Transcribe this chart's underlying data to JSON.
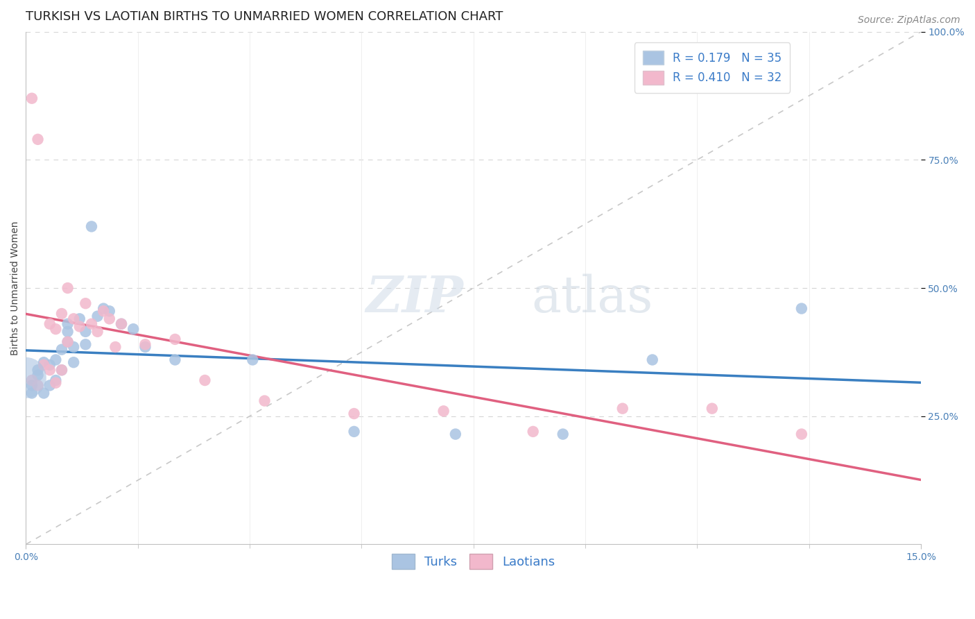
{
  "title": "TURKISH VS LAOTIAN BIRTHS TO UNMARRIED WOMEN CORRELATION CHART",
  "source_text": "Source: ZipAtlas.com",
  "ylabel": "Births to Unmarried Women",
  "xlim": [
    0.0,
    0.15
  ],
  "ylim": [
    0.0,
    1.0
  ],
  "legend_r1": "R = 0.179",
  "legend_n1": "N = 35",
  "legend_r2": "R = 0.410",
  "legend_n2": "N = 32",
  "turks_color": "#aac4e2",
  "laotians_color": "#f2b8cc",
  "turks_line_color": "#3a7fc1",
  "laotians_line_color": "#e06080",
  "ref_line_color": "#c8c8c8",
  "background_color": "#ffffff",
  "turks_x": [
    0.0,
    0.001,
    0.001,
    0.002,
    0.002,
    0.003,
    0.003,
    0.004,
    0.004,
    0.005,
    0.005,
    0.006,
    0.006,
    0.007,
    0.007,
    0.007,
    0.008,
    0.008,
    0.009,
    0.01,
    0.01,
    0.011,
    0.012,
    0.013,
    0.014,
    0.016,
    0.018,
    0.02,
    0.025,
    0.038,
    0.055,
    0.072,
    0.09,
    0.105,
    0.13
  ],
  "turks_y": [
    0.325,
    0.31,
    0.295,
    0.33,
    0.34,
    0.295,
    0.355,
    0.31,
    0.35,
    0.32,
    0.36,
    0.34,
    0.38,
    0.395,
    0.415,
    0.43,
    0.355,
    0.385,
    0.44,
    0.39,
    0.415,
    0.62,
    0.445,
    0.46,
    0.455,
    0.43,
    0.42,
    0.385,
    0.36,
    0.36,
    0.22,
    0.215,
    0.215,
    0.36,
    0.46
  ],
  "laotians_x": [
    0.001,
    0.001,
    0.002,
    0.002,
    0.003,
    0.004,
    0.004,
    0.005,
    0.005,
    0.006,
    0.006,
    0.007,
    0.007,
    0.008,
    0.009,
    0.01,
    0.011,
    0.012,
    0.013,
    0.014,
    0.015,
    0.016,
    0.02,
    0.025,
    0.03,
    0.04,
    0.055,
    0.07,
    0.085,
    0.1,
    0.115,
    0.13
  ],
  "laotians_y": [
    0.32,
    0.87,
    0.31,
    0.79,
    0.35,
    0.34,
    0.43,
    0.315,
    0.42,
    0.34,
    0.45,
    0.395,
    0.5,
    0.44,
    0.425,
    0.47,
    0.43,
    0.415,
    0.455,
    0.44,
    0.385,
    0.43,
    0.39,
    0.4,
    0.32,
    0.28,
    0.255,
    0.26,
    0.22,
    0.265,
    0.265,
    0.215
  ],
  "title_fontsize": 13,
  "axis_label_fontsize": 10,
  "tick_fontsize": 10,
  "legend_fontsize": 12,
  "source_fontsize": 10
}
